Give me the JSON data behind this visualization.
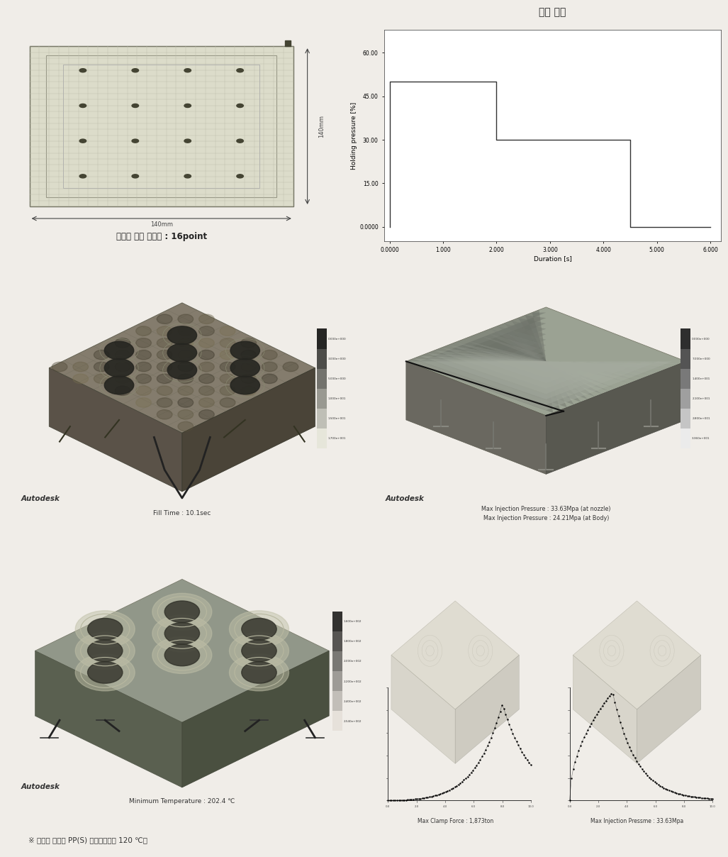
{
  "bg_color": "#f0ede8",
  "panel_bg": "#ffffff",
  "top_left_label": "게이트 위치 계략도 : 16point",
  "top_right_label": "보압 조건",
  "holding_pressure_x": [
    0.0,
    0.0,
    2.0,
    2.0,
    4.5,
    4.5,
    6.0
  ],
  "holding_pressure_y": [
    0.0,
    50.0,
    50.0,
    30.0,
    30.0,
    0.0,
    0.0
  ],
  "hp_xlabel": "Duration [s]",
  "hp_ylabel": "Holding pressure [%]",
  "hp_yticks": [
    0.0,
    15.0,
    30.0,
    45.0,
    60.0
  ],
  "hp_xticks": [
    0.0,
    1.0,
    2.0,
    3.0,
    4.0,
    5.0,
    6.0
  ],
  "hp_xtick_labels": [
    "0.0000",
    "1.000",
    "2.000",
    "3.000",
    "4.000",
    "5.000",
    "6.000"
  ],
  "hp_ytick_labels": [
    "0.0000",
    "15.00",
    "30.00",
    "45.00",
    "60.00"
  ],
  "fill_time_label": "Fill Time : 10.1sec",
  "injection_pressure_label1": "Max Injection Pressure : 33.63Mpa (at nozzle)",
  "injection_pressure_label2": "Max Injection Pressure : 24.21Mpa (at Body)",
  "min_temp_label": "Minimum Temperature : 202.4 ℃",
  "clamp_force_label": "Max Clamp Force : 1,873ton",
  "max_inj_press_label": "Max Injection Pressme : 33.63Mpa",
  "footnote": "※ 해석을 실시한 PP(S) 점이유온도는 120 ℃임",
  "dim_label_v": "140mm",
  "dim_label_h": "140mm",
  "autodesk_label": "Autodesk",
  "colorbar1_top": "1.700e+001",
  "colorbar1_vals": [
    "1.700e+001",
    "1.500e+001",
    "1.000e+001",
    "5.000e+000",
    "3.000e+000",
    "0.000e+000"
  ],
  "colorbar2_top": "3.360e+001",
  "colorbar2_vals": [
    "3.360e+001",
    "2.800e+001",
    "2.100e+001",
    "1.400e+001",
    "7.000e+000",
    "0.000e+000"
  ],
  "colorbar3_vals": [
    "2.540e+002",
    "2.400e+002",
    "2.200e+002",
    "2.000e+002",
    "1.800e+002",
    "1.600e+002"
  ]
}
